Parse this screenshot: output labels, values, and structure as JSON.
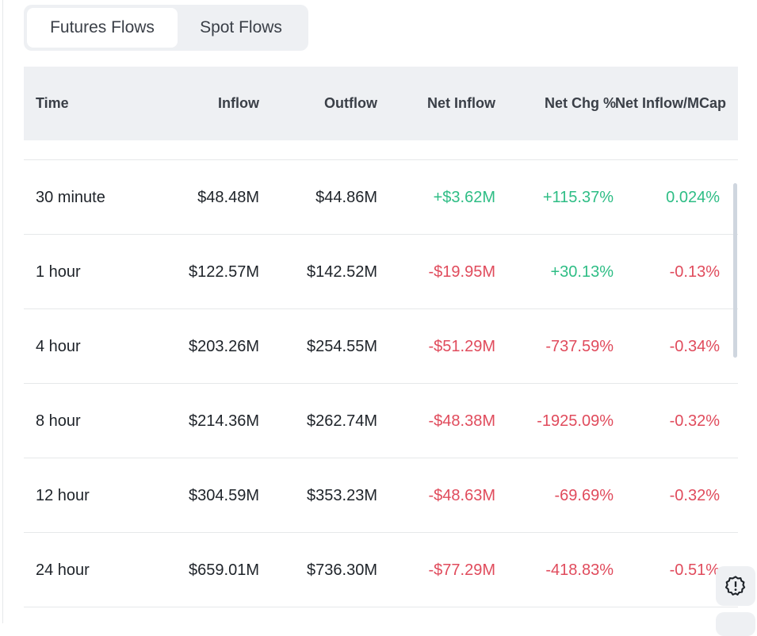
{
  "tabs": [
    {
      "label": "Futures Flows",
      "active": true
    },
    {
      "label": "Spot Flows",
      "active": false
    }
  ],
  "columns": [
    "Time",
    "Inflow",
    "Outflow",
    "Net Inflow",
    "Net Chg %",
    "Net Inflow/MCap"
  ],
  "rows": [
    {
      "time": "30 minute",
      "inflow": "$48.48M",
      "outflow": "$44.86M",
      "net": "+$3.62M",
      "chg": "+115.37%",
      "mcap": "0.024%",
      "net_pos": true,
      "chg_pos": true,
      "mcap_pos": true
    },
    {
      "time": "1 hour",
      "inflow": "$122.57M",
      "outflow": "$142.52M",
      "net": "-$19.95M",
      "chg": "+30.13%",
      "mcap": "-0.13%",
      "net_pos": false,
      "chg_pos": true,
      "mcap_pos": false
    },
    {
      "time": "4 hour",
      "inflow": "$203.26M",
      "outflow": "$254.55M",
      "net": "-$51.29M",
      "chg": "-737.59%",
      "mcap": "-0.34%",
      "net_pos": false,
      "chg_pos": false,
      "mcap_pos": false
    },
    {
      "time": "8 hour",
      "inflow": "$214.36M",
      "outflow": "$262.74M",
      "net": "-$48.38M",
      "chg": "-1925.09%",
      "mcap": "-0.32%",
      "net_pos": false,
      "chg_pos": false,
      "mcap_pos": false
    },
    {
      "time": "12 hour",
      "inflow": "$304.59M",
      "outflow": "$353.23M",
      "net": "-$48.63M",
      "chg": "-69.69%",
      "mcap": "-0.32%",
      "net_pos": false,
      "chg_pos": false,
      "mcap_pos": false
    },
    {
      "time": "24 hour",
      "inflow": "$659.01M",
      "outflow": "$736.30M",
      "net": "-$77.29M",
      "chg": "-418.83%",
      "mcap": "-0.51%",
      "net_pos": false,
      "chg_pos": false,
      "mcap_pos": false
    }
  ],
  "colors": {
    "positive": "#2ebd85",
    "negative": "#e04b5c"
  },
  "icons": {
    "fab": "alert-badge-icon"
  }
}
